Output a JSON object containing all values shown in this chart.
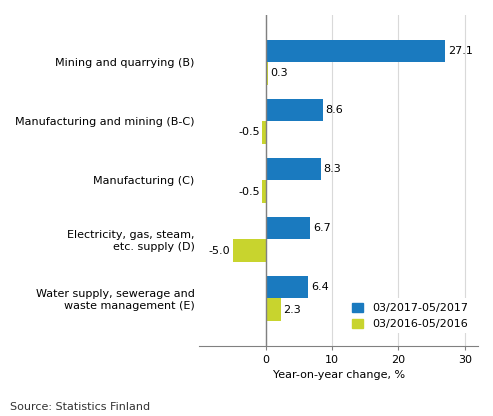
{
  "categories": [
    "Water supply, sewerage and\nwaste management (E)",
    "Electricity, gas, steam,\netc. supply (D)",
    "Manufacturing (C)",
    "Manufacturing and mining (B-C)",
    "Mining and quarrying (B)"
  ],
  "values_2017": [
    6.4,
    6.7,
    8.3,
    8.6,
    27.1
  ],
  "values_2016": [
    2.3,
    -5.0,
    -0.5,
    -0.5,
    0.3
  ],
  "color_2017": "#1a7abf",
  "color_2016": "#c8d42e",
  "xlabel": "Year-on-year change, %",
  "source": "Source: Statistics Finland",
  "legend_2017": "03/2017-05/2017",
  "legend_2016": "03/2016-05/2016",
  "xlim": [
    -10,
    32
  ],
  "xticks": [
    0,
    10,
    20,
    30
  ],
  "bar_height": 0.38,
  "label_fontsize": 8,
  "axis_fontsize": 8,
  "source_fontsize": 8,
  "legend_fontsize": 8,
  "background_color": "#ffffff",
  "grid_color": "#d9d9d9"
}
